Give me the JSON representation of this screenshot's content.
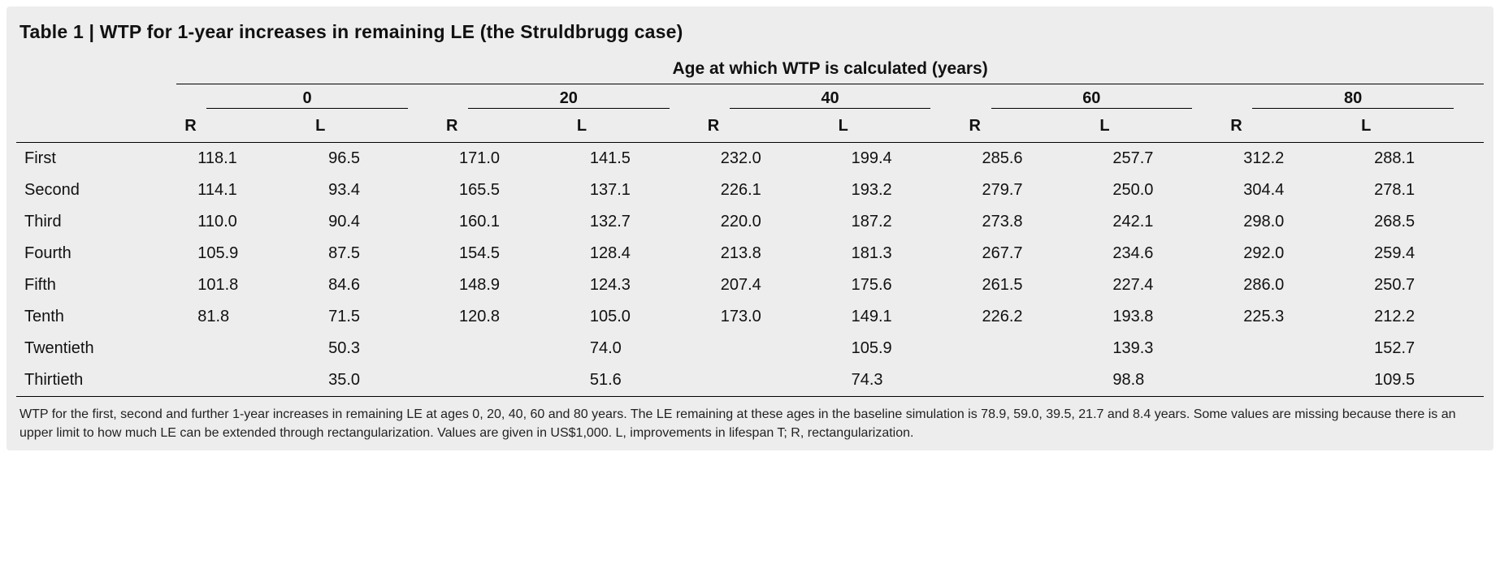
{
  "title_prefix": "Table 1 | ",
  "title_text": "WTP for 1-year increases in remaining LE (the Struldbrugg case)",
  "spanning_header": "Age at which WTP is calculated (years)",
  "age_groups": [
    "0",
    "20",
    "40",
    "60",
    "80"
  ],
  "sub_cols": [
    "R",
    "L"
  ],
  "rows": [
    {
      "label": "First",
      "vals": [
        "118.1",
        "96.5",
        "171.0",
        "141.5",
        "232.0",
        "199.4",
        "285.6",
        "257.7",
        "312.2",
        "288.1"
      ]
    },
    {
      "label": "Second",
      "vals": [
        "114.1",
        "93.4",
        "165.5",
        "137.1",
        "226.1",
        "193.2",
        "279.7",
        "250.0",
        "304.4",
        "278.1"
      ]
    },
    {
      "label": "Third",
      "vals": [
        "110.0",
        "90.4",
        "160.1",
        "132.7",
        "220.0",
        "187.2",
        "273.8",
        "242.1",
        "298.0",
        "268.5"
      ]
    },
    {
      "label": "Fourth",
      "vals": [
        "105.9",
        "87.5",
        "154.5",
        "128.4",
        "213.8",
        "181.3",
        "267.7",
        "234.6",
        "292.0",
        "259.4"
      ]
    },
    {
      "label": "Fifth",
      "vals": [
        "101.8",
        "84.6",
        "148.9",
        "124.3",
        "207.4",
        "175.6",
        "261.5",
        "227.4",
        "286.0",
        "250.7"
      ]
    },
    {
      "label": "Tenth",
      "vals": [
        "81.8",
        "71.5",
        "120.8",
        "105.0",
        "173.0",
        "149.1",
        "226.2",
        "193.8",
        "225.3",
        "212.2"
      ]
    },
    {
      "label": "Twentieth",
      "vals": [
        "",
        "50.3",
        "",
        "74.0",
        "",
        "105.9",
        "",
        "139.3",
        "",
        "152.7"
      ]
    },
    {
      "label": "Thirtieth",
      "vals": [
        "",
        "35.0",
        "",
        "51.6",
        "",
        "74.3",
        "",
        "98.8",
        "",
        "109.5"
      ]
    }
  ],
  "footnote": "WTP for the first, second and further 1-year increases in remaining LE at ages 0, 20, 40, 60 and 80 years. The LE remaining at these ages in the baseline simulation is 78.9, 59.0, 39.5, 21.7 and 8.4 years. Some values are missing because there is an upper limit to how much LE can be extended through rectangularization. Values are given in US$1,000. L, improvements in lifespan T; R, rectangularization.",
  "colors": {
    "panel_bg": "#ededed",
    "text": "#111111",
    "rule": "#000000"
  },
  "fontsize": {
    "title": 23,
    "span": 21,
    "body": 20,
    "foot": 16
  }
}
